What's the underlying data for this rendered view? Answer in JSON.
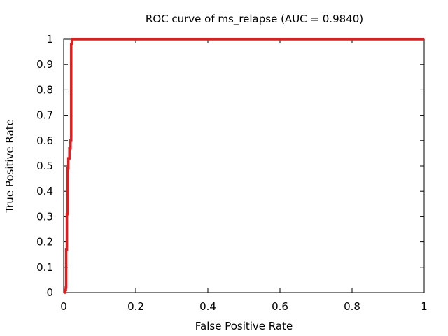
{
  "chart_data": {
    "type": "line",
    "title": "ROC curve of ms_relapse (AUC = 0.9840)",
    "xlabel": "False Positive Rate",
    "ylabel": "True Positive Rate",
    "xlim": [
      0,
      1
    ],
    "ylim": [
      0,
      1
    ],
    "grid": false,
    "legend": "none",
    "x_ticks": [
      0,
      0.2,
      0.4,
      0.6,
      0.8,
      1
    ],
    "x_tick_labels": [
      "0",
      "0.2",
      "0.4",
      "0.6",
      "0.8",
      "1"
    ],
    "y_ticks": [
      0,
      0.1,
      0.2,
      0.3,
      0.4,
      0.5,
      0.6,
      0.7,
      0.8,
      0.9,
      1
    ],
    "y_tick_labels": [
      "0",
      "0.1",
      "0.2",
      "0.3",
      "0.4",
      "0.5",
      "0.6",
      "0.7",
      "0.8",
      "0.9",
      "1"
    ],
    "series": [
      {
        "color": "#e41a1c",
        "x": [
          0,
          0.004,
          0.004,
          0.006,
          0.006,
          0.007,
          0.007,
          0.009,
          0.009,
          0.011,
          0.011,
          0.013,
          0.013,
          0.016,
          0.016,
          0.019,
          0.019,
          0.021,
          0.021,
          0.023,
          0.023,
          0.05,
          0.2,
          0.5,
          1.0
        ],
        "y": [
          0.0,
          0.0,
          0.01,
          0.01,
          0.02,
          0.02,
          0.17,
          0.17,
          0.31,
          0.31,
          0.49,
          0.49,
          0.53,
          0.53,
          0.57,
          0.57,
          0.6,
          0.6,
          0.98,
          0.98,
          1.0,
          1.0,
          1.0,
          1.0,
          1.0
        ]
      }
    ]
  },
  "colors": {
    "curve": "#e41a1c",
    "axes": "#000000",
    "background": "#ffffff"
  }
}
